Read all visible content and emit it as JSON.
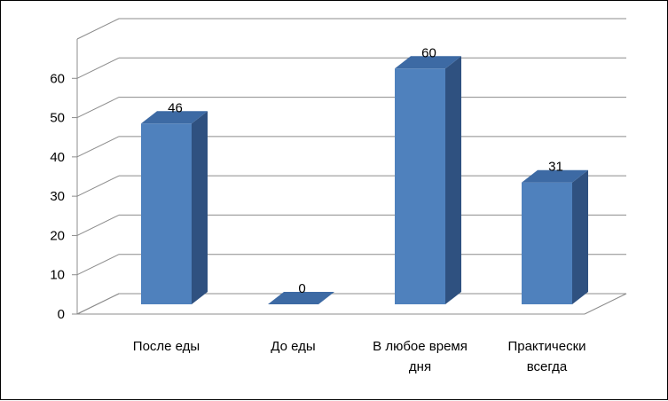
{
  "chart_data": {
    "type": "bar",
    "categories": [
      "После еды",
      "До еды",
      "В любое время дня",
      "Практически всегда"
    ],
    "category_lines": [
      [
        "После еды"
      ],
      [
        "До еды"
      ],
      [
        "В любое время",
        "дня"
      ],
      [
        "Практически",
        "всегда"
      ]
    ],
    "values": [
      46,
      0,
      60,
      31
    ],
    "y_ticks": [
      0,
      10,
      20,
      30,
      40,
      50,
      60
    ],
    "ylim": [
      0,
      70
    ],
    "grid": true,
    "legend": "none",
    "data_labels": [
      "46",
      "0",
      "60",
      "31"
    ],
    "colors": {
      "bar_front": "#4f81bd",
      "bar_side": "#2f5180",
      "bar_top": "#3d6aa4",
      "grid": "#8c8c8c"
    }
  }
}
